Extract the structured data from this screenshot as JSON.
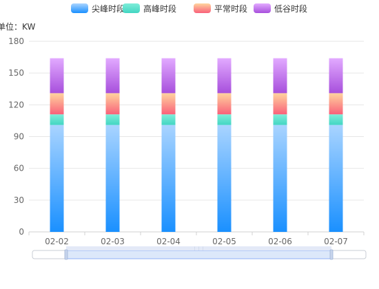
{
  "chart_data": {
    "type": "bar",
    "stacked": true,
    "unit_label": "单位：KW",
    "categories": [
      "02-02",
      "02-03",
      "02-04",
      "02-05",
      "02-06",
      "02-07"
    ],
    "ylim": [
      0,
      180
    ],
    "yticks": [
      "0",
      "30",
      "60",
      "90",
      "120",
      "150",
      "180"
    ],
    "ytick_values": [
      0,
      30,
      60,
      90,
      120,
      150,
      180
    ],
    "grid": true,
    "legend_position": "top-center",
    "series": [
      {
        "name": "尖峰时段",
        "values": [
          101,
          101,
          101,
          101,
          101,
          101
        ],
        "color_top": "#a9d4ff",
        "color_bottom": "#1a90ff"
      },
      {
        "name": "高峰时段",
        "values": [
          10,
          10,
          10,
          10,
          10,
          10
        ],
        "color_top": "#7eedd9",
        "color_bottom": "#43d6c2"
      },
      {
        "name": "平常时段",
        "values": [
          20,
          20,
          20,
          20,
          20,
          20
        ],
        "color_top": "#ffd49e",
        "color_bottom": "#f9617a"
      },
      {
        "name": "低谷时段",
        "values": [
          33,
          33,
          33,
          33,
          33,
          33
        ],
        "color_top": "#e2aaff",
        "color_bottom": "#a74fdc"
      }
    ],
    "datazoom": {
      "start": 0,
      "end": 100
    }
  }
}
